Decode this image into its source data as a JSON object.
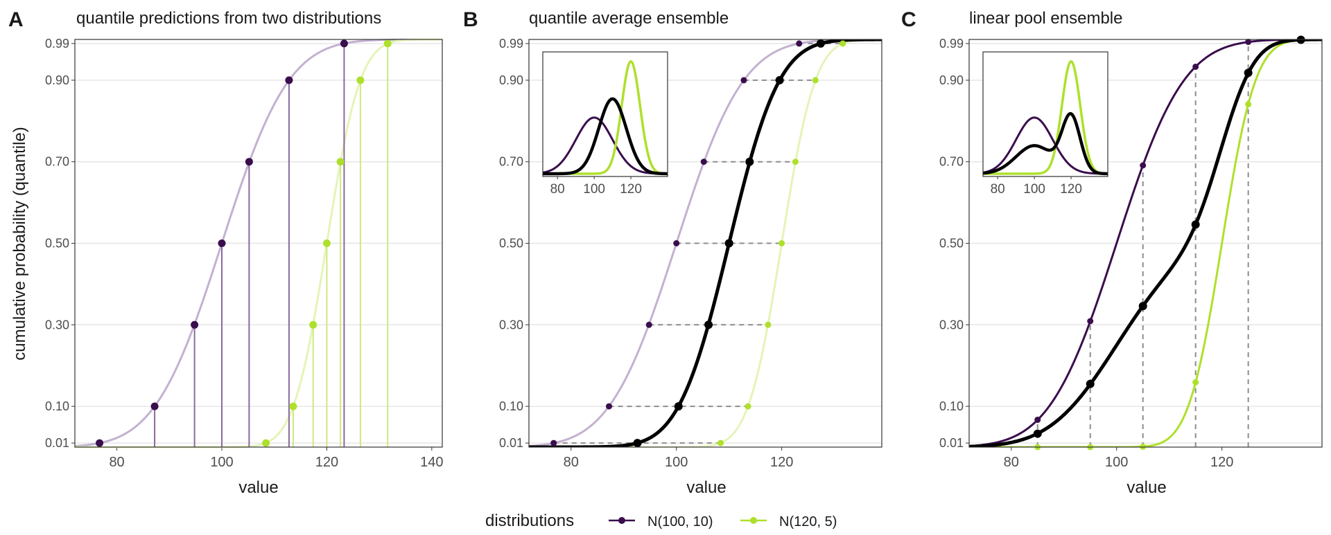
{
  "figure": {
    "legend_title": "distributions",
    "legend_items": [
      {
        "label": "N(100, 10)",
        "color": "#3a0d4d"
      },
      {
        "label": "N(120, 5)",
        "color": "#aee02b"
      }
    ],
    "ylabel": "cumulative probability (quantile)"
  },
  "chart_data": [
    {
      "panel_letter": "A",
      "type": "line",
      "title": "quantile predictions from two distributions",
      "xlabel": "value",
      "ylabel": "cumulative probability (quantile)",
      "xlim": [
        72,
        142
      ],
      "xticks": [
        80,
        100,
        120,
        140
      ],
      "ylim": [
        0.0,
        1.0
      ],
      "yticks": [
        "0.01",
        "0.10",
        "0.30",
        "0.50",
        "0.70",
        "0.90",
        "0.99"
      ],
      "quantile_levels": [
        0.01,
        0.1,
        0.3,
        0.5,
        0.7,
        0.9,
        0.99
      ],
      "series": [
        {
          "name": "N(100, 10)",
          "mean": 100,
          "sd": 10,
          "quantiles": [
            76.7,
            87.2,
            94.8,
            100.0,
            105.2,
            112.8,
            123.3
          ]
        },
        {
          "name": "N(120, 5)",
          "mean": 120,
          "sd": 5,
          "quantiles": [
            108.4,
            113.6,
            117.4,
            120.0,
            122.6,
            126.4,
            131.6
          ]
        }
      ]
    },
    {
      "panel_letter": "B",
      "type": "line",
      "title": "quantile average ensemble",
      "xlabel": "value",
      "xlim": [
        72,
        139
      ],
      "xticks": [
        80,
        100,
        120
      ],
      "ylim": [
        0.0,
        1.0
      ],
      "yticks": [
        "0.01",
        "0.10",
        "0.30",
        "0.50",
        "0.70",
        "0.90",
        "0.99"
      ],
      "quantile_levels": [
        0.01,
        0.1,
        0.3,
        0.5,
        0.7,
        0.9,
        0.99
      ],
      "series": [
        {
          "name": "N(100, 10)",
          "mean": 100,
          "sd": 10,
          "quantiles": [
            76.7,
            87.2,
            94.8,
            100.0,
            105.2,
            112.8,
            123.3
          ]
        },
        {
          "name": "N(120, 5)",
          "mean": 120,
          "sd": 5,
          "quantiles": [
            108.4,
            113.6,
            117.4,
            120.0,
            122.6,
            126.4,
            131.6
          ]
        },
        {
          "name": "ensemble",
          "mean": 110,
          "sd": 7.5,
          "quantiles": [
            92.6,
            100.4,
            106.1,
            110.0,
            113.9,
            119.6,
            127.4
          ]
        }
      ],
      "inset": {
        "type": "density",
        "xlim": [
          72,
          140
        ],
        "xticks": [
          80,
          100,
          120
        ],
        "series": [
          {
            "name": "N(100, 10)",
            "mean": 100,
            "sd": 10
          },
          {
            "name": "N(120, 5)",
            "mean": 120,
            "sd": 5
          },
          {
            "name": "ensemble",
            "mean": 110,
            "sd": 7.5
          }
        ]
      }
    },
    {
      "panel_letter": "C",
      "type": "line",
      "title": "linear pool ensemble",
      "xlabel": "value",
      "xlim": [
        72,
        139
      ],
      "xticks": [
        80,
        100,
        120
      ],
      "ylim": [
        0.0,
        1.0
      ],
      "yticks": [
        "0.01",
        "0.10",
        "0.30",
        "0.50",
        "0.70",
        "0.90",
        "0.99"
      ],
      "sample_values": [
        85,
        95,
        105,
        115,
        125
      ],
      "series": [
        {
          "name": "N(100, 10)",
          "mean": 100,
          "sd": 10,
          "cdf_at_samples": [
            0.067,
            0.309,
            0.691,
            0.933,
            0.994
          ]
        },
        {
          "name": "N(120, 5)",
          "mean": 120,
          "sd": 5,
          "cdf_at_samples": [
            0.0,
            0.0,
            0.001,
            0.159,
            0.841
          ]
        },
        {
          "name": "ensemble",
          "mixture_weights": [
            0.5,
            0.5
          ],
          "cdf_at_samples": [
            0.033,
            0.155,
            0.346,
            0.546,
            0.918
          ]
        }
      ],
      "inset": {
        "type": "density",
        "xlim": [
          72,
          140
        ],
        "xticks": [
          80,
          100,
          120
        ],
        "series": [
          {
            "name": "N(100, 10)",
            "mean": 100,
            "sd": 10
          },
          {
            "name": "N(120, 5)",
            "mean": 120,
            "sd": 5
          },
          {
            "name": "ensemble",
            "mixture_weights": [
              0.5,
              0.5
            ]
          }
        ]
      }
    }
  ]
}
